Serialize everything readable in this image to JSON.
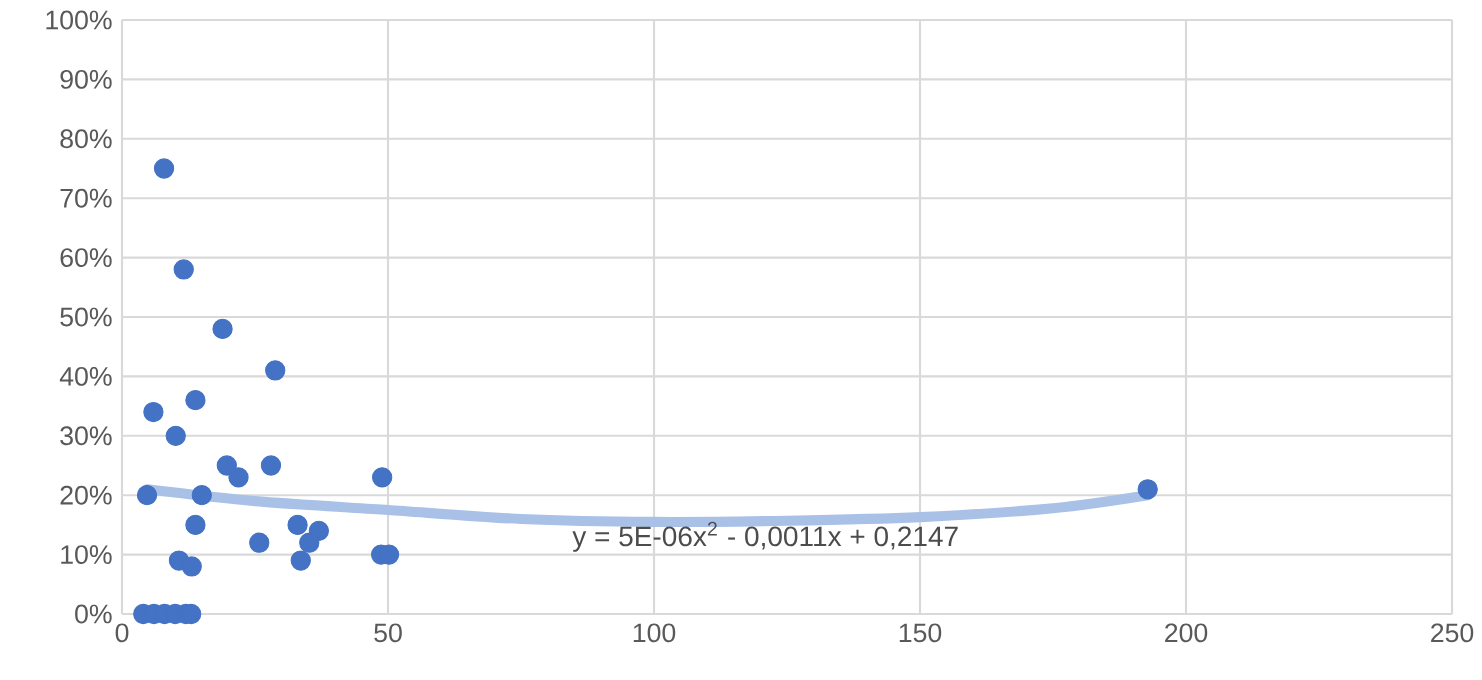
{
  "chart_data": {
    "type": "scatter",
    "grid": true,
    "xlim": [
      0,
      250
    ],
    "xticks": [
      0,
      50,
      100,
      150,
      200,
      250
    ],
    "ylim": [
      0,
      1
    ],
    "yticks": [
      {
        "value": 0,
        "label": "0%"
      },
      {
        "value": 0.1,
        "label": "10%"
      },
      {
        "value": 0.2,
        "label": "20%"
      },
      {
        "value": 0.3,
        "label": "30%"
      },
      {
        "value": 0.4,
        "label": "40%"
      },
      {
        "value": 0.5,
        "label": "50%"
      },
      {
        "value": 0.6,
        "label": "60%"
      },
      {
        "value": 0.7,
        "label": "70%"
      },
      {
        "value": 0.8,
        "label": "80%"
      },
      {
        "value": 0.9,
        "label": "90%"
      },
      {
        "value": 1,
        "label": "100%"
      }
    ],
    "series": [
      {
        "marker": "circle",
        "color": "#4472c4",
        "x": [
          7.9,
          11.6,
          18.9,
          28.8,
          5.9,
          13.8,
          10.1,
          19.7,
          21.9,
          28,
          4.7,
          15,
          48.9,
          13.8,
          33,
          37,
          35.2,
          25.8,
          33.6,
          10.7,
          13.1,
          48.7,
          50.2,
          4,
          6,
          8,
          10,
          12,
          13,
          192.8
        ],
        "values": [
          0.75,
          0.58,
          0.48,
          0.41,
          0.34,
          0.36,
          0.3,
          0.25,
          0.23,
          0.25,
          0.2,
          0.2,
          0.23,
          0.15,
          0.15,
          0.14,
          0.12,
          0.12,
          0.09,
          0.09,
          0.08,
          0.1,
          0.1,
          0,
          0,
          0,
          0,
          0,
          0,
          0.21
        ]
      },
      {
        "type": "line",
        "marker": "none",
        "color": "#a9c1e6",
        "x": [
          4.7,
          25,
          50,
          75,
          100,
          125,
          150,
          175,
          192.8
        ],
        "values": [
          0.21,
          0.19,
          0.175,
          0.16,
          0.155,
          0.157,
          0.163,
          0.178,
          0.2
        ]
      }
    ],
    "annotations": [
      "y = 5E-06x$^{2}$ - 0,0011x + 0,2147"
    ]
  }
}
